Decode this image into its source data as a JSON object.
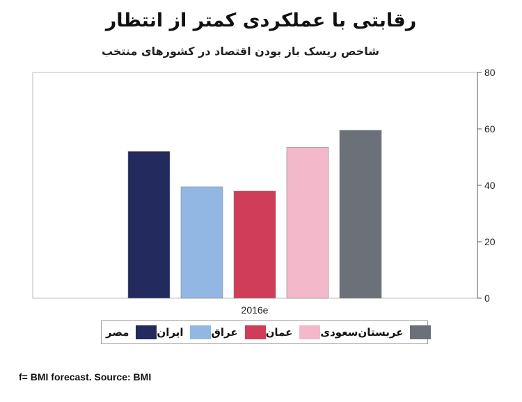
{
  "chart_data": {
    "type": "bar",
    "title": "رقابتی با عملکردی کمتر از انتظار",
    "subtitle": "شاخص ریسک باز بودن اقتصاد در کشورهای منتخب",
    "categories": [
      "2016e"
    ],
    "series": [
      {
        "name": "مصر",
        "values": [
          52
        ],
        "color": "#232a5e"
      },
      {
        "name": "ایران",
        "values": [
          39.5
        ],
        "color": "#93b7e3"
      },
      {
        "name": "عراق",
        "values": [
          38
        ],
        "color": "#cf3d58"
      },
      {
        "name": "عمان",
        "values": [
          53.5
        ],
        "color": "#f3b9cb"
      },
      {
        "name": "عربستان‌سعودی",
        "values": [
          59.5
        ],
        "color": "#6b7079"
      }
    ],
    "ylim": [
      0,
      80
    ],
    "yticks": [
      0,
      20,
      40,
      60,
      80
    ],
    "y_axis_side": "right",
    "grid": false,
    "legend_position": "bottom"
  },
  "source": "f= BMI forecast. Source: BMI"
}
